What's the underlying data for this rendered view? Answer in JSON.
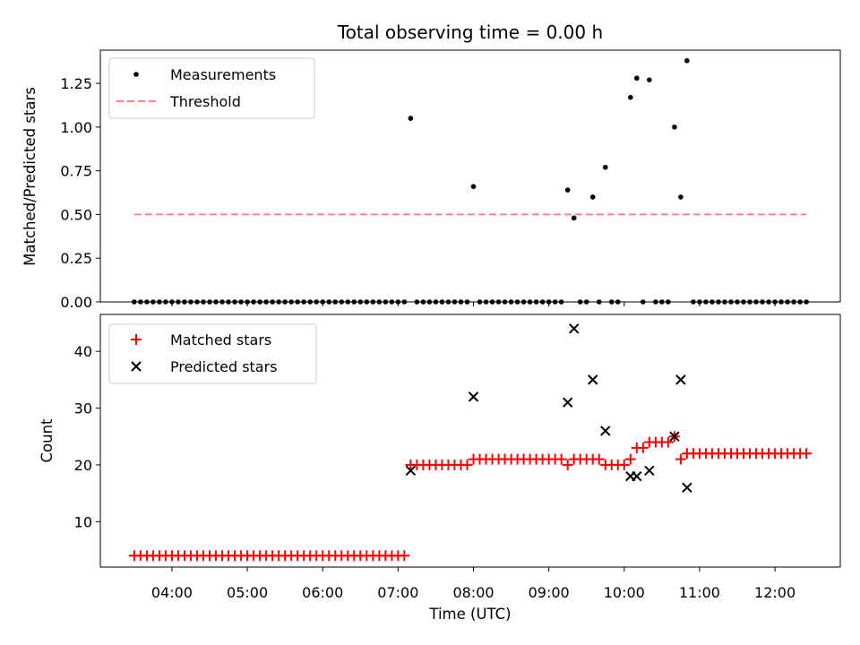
{
  "chart_data": {
    "title": "Total observing time = 0.00 h",
    "xlabel": "Time (UTC)",
    "x_ticks": [
      "04:00",
      "05:00",
      "06:00",
      "07:00",
      "08:00",
      "09:00",
      "10:00",
      "11:00",
      "12:00"
    ],
    "panels": [
      {
        "type": "scatter",
        "ylabel": "Matched/Predicted stars",
        "ylim": [
          0,
          1.44
        ],
        "y_ticks": [
          "0.00",
          "0.25",
          "0.50",
          "0.75",
          "1.00",
          "1.25"
        ],
        "legend": {
          "position": "upper-left"
        },
        "series": [
          {
            "name": "Measurements",
            "marker": "dot",
            "color": "#000000",
            "points": [
              [
                "03:30",
                0
              ],
              [
                "03:35",
                0
              ],
              [
                "03:40",
                0
              ],
              [
                "03:45",
                0
              ],
              [
                "03:50",
                0
              ],
              [
                "03:55",
                0
              ],
              [
                "04:00",
                0
              ],
              [
                "04:05",
                0
              ],
              [
                "04:10",
                0
              ],
              [
                "04:15",
                0
              ],
              [
                "04:20",
                0
              ],
              [
                "04:25",
                0
              ],
              [
                "04:30",
                0
              ],
              [
                "04:35",
                0
              ],
              [
                "04:40",
                0
              ],
              [
                "04:45",
                0
              ],
              [
                "04:50",
                0
              ],
              [
                "04:55",
                0
              ],
              [
                "05:00",
                0
              ],
              [
                "05:05",
                0
              ],
              [
                "05:10",
                0
              ],
              [
                "05:15",
                0
              ],
              [
                "05:20",
                0
              ],
              [
                "05:25",
                0
              ],
              [
                "05:30",
                0
              ],
              [
                "05:35",
                0
              ],
              [
                "05:40",
                0
              ],
              [
                "05:45",
                0
              ],
              [
                "05:50",
                0
              ],
              [
                "05:55",
                0
              ],
              [
                "06:00",
                0
              ],
              [
                "06:05",
                0
              ],
              [
                "06:10",
                0
              ],
              [
                "06:15",
                0
              ],
              [
                "06:20",
                0
              ],
              [
                "06:25",
                0
              ],
              [
                "06:30",
                0
              ],
              [
                "06:35",
                0
              ],
              [
                "06:40",
                0
              ],
              [
                "06:45",
                0
              ],
              [
                "06:50",
                0
              ],
              [
                "06:55",
                0
              ],
              [
                "07:00",
                0
              ],
              [
                "07:05",
                0
              ],
              [
                "07:10",
                1.05
              ],
              [
                "07:15",
                0
              ],
              [
                "07:20",
                0
              ],
              [
                "07:25",
                0
              ],
              [
                "07:30",
                0
              ],
              [
                "07:35",
                0
              ],
              [
                "07:40",
                0
              ],
              [
                "07:45",
                0
              ],
              [
                "07:50",
                0
              ],
              [
                "07:55",
                0
              ],
              [
                "08:00",
                0.66
              ],
              [
                "08:05",
                0
              ],
              [
                "08:10",
                0
              ],
              [
                "08:15",
                0
              ],
              [
                "08:20",
                0
              ],
              [
                "08:25",
                0
              ],
              [
                "08:30",
                0
              ],
              [
                "08:35",
                0
              ],
              [
                "08:40",
                0
              ],
              [
                "08:45",
                0
              ],
              [
                "08:50",
                0
              ],
              [
                "08:55",
                0
              ],
              [
                "09:00",
                0
              ],
              [
                "09:05",
                0
              ],
              [
                "09:10",
                0
              ],
              [
                "09:15",
                0.64
              ],
              [
                "09:20",
                0.48
              ],
              [
                "09:25",
                0
              ],
              [
                "09:30",
                0
              ],
              [
                "09:35",
                0.6
              ],
              [
                "09:40",
                0
              ],
              [
                "09:45",
                0.77
              ],
              [
                "09:50",
                0
              ],
              [
                "09:55",
                0
              ],
              [
                "10:05",
                1.17
              ],
              [
                "10:10",
                1.28
              ],
              [
                "10:15",
                0
              ],
              [
                "10:20",
                1.27
              ],
              [
                "10:25",
                0
              ],
              [
                "10:30",
                0
              ],
              [
                "10:35",
                0
              ],
              [
                "10:40",
                1.0
              ],
              [
                "10:45",
                0.6
              ],
              [
                "10:50",
                1.38
              ],
              [
                "10:55",
                0
              ],
              [
                "11:00",
                0
              ],
              [
                "11:05",
                0
              ],
              [
                "11:10",
                0
              ],
              [
                "11:15",
                0
              ],
              [
                "11:20",
                0
              ],
              [
                "11:25",
                0
              ],
              [
                "11:30",
                0
              ],
              [
                "11:35",
                0
              ],
              [
                "11:40",
                0
              ],
              [
                "11:45",
                0
              ],
              [
                "11:50",
                0
              ],
              [
                "11:55",
                0
              ],
              [
                "12:00",
                0
              ],
              [
                "12:05",
                0
              ],
              [
                "12:10",
                0
              ],
              [
                "12:15",
                0
              ],
              [
                "12:20",
                0
              ],
              [
                "12:25",
                0
              ]
            ]
          },
          {
            "name": "Threshold",
            "type": "line",
            "style": "dashed",
            "color": "#ff8080",
            "points": [
              [
                "03:30",
                0.5
              ],
              [
                "12:25",
                0.5
              ]
            ]
          }
        ]
      },
      {
        "type": "scatter",
        "ylabel": "Count",
        "ylim": [
          2,
          46.5
        ],
        "y_ticks": [
          "10",
          "20",
          "30",
          "40"
        ],
        "legend": {
          "position": "upper-left"
        },
        "series": [
          {
            "name": "Matched stars",
            "marker": "plus",
            "color": "#ff0000",
            "points": [
              [
                "03:30",
                4
              ],
              [
                "03:35",
                4
              ],
              [
                "03:40",
                4
              ],
              [
                "03:45",
                4
              ],
              [
                "03:50",
                4
              ],
              [
                "03:55",
                4
              ],
              [
                "04:00",
                4
              ],
              [
                "04:05",
                4
              ],
              [
                "04:10",
                4
              ],
              [
                "04:15",
                4
              ],
              [
                "04:20",
                4
              ],
              [
                "04:25",
                4
              ],
              [
                "04:30",
                4
              ],
              [
                "04:35",
                4
              ],
              [
                "04:40",
                4
              ],
              [
                "04:45",
                4
              ],
              [
                "04:50",
                4
              ],
              [
                "04:55",
                4
              ],
              [
                "05:00",
                4
              ],
              [
                "05:05",
                4
              ],
              [
                "05:10",
                4
              ],
              [
                "05:15",
                4
              ],
              [
                "05:20",
                4
              ],
              [
                "05:25",
                4
              ],
              [
                "05:30",
                4
              ],
              [
                "05:35",
                4
              ],
              [
                "05:40",
                4
              ],
              [
                "05:45",
                4
              ],
              [
                "05:50",
                4
              ],
              [
                "05:55",
                4
              ],
              [
                "06:00",
                4
              ],
              [
                "06:05",
                4
              ],
              [
                "06:10",
                4
              ],
              [
                "06:15",
                4
              ],
              [
                "06:20",
                4
              ],
              [
                "06:25",
                4
              ],
              [
                "06:30",
                4
              ],
              [
                "06:35",
                4
              ],
              [
                "06:40",
                4
              ],
              [
                "06:45",
                4
              ],
              [
                "06:50",
                4
              ],
              [
                "06:55",
                4
              ],
              [
                "07:00",
                4
              ],
              [
                "07:05",
                4
              ],
              [
                "07:10",
                20
              ],
              [
                "07:15",
                20
              ],
              [
                "07:20",
                20
              ],
              [
                "07:25",
                20
              ],
              [
                "07:30",
                20
              ],
              [
                "07:35",
                20
              ],
              [
                "07:40",
                20
              ],
              [
                "07:45",
                20
              ],
              [
                "07:50",
                20
              ],
              [
                "07:55",
                20
              ],
              [
                "08:00",
                21
              ],
              [
                "08:05",
                21
              ],
              [
                "08:10",
                21
              ],
              [
                "08:15",
                21
              ],
              [
                "08:20",
                21
              ],
              [
                "08:25",
                21
              ],
              [
                "08:30",
                21
              ],
              [
                "08:35",
                21
              ],
              [
                "08:40",
                21
              ],
              [
                "08:45",
                21
              ],
              [
                "08:50",
                21
              ],
              [
                "08:55",
                21
              ],
              [
                "09:00",
                21
              ],
              [
                "09:05",
                21
              ],
              [
                "09:10",
                21
              ],
              [
                "09:15",
                20
              ],
              [
                "09:20",
                21
              ],
              [
                "09:25",
                21
              ],
              [
                "09:30",
                21
              ],
              [
                "09:35",
                21
              ],
              [
                "09:40",
                21
              ],
              [
                "09:45",
                20
              ],
              [
                "09:50",
                20
              ],
              [
                "09:55",
                20
              ],
              [
                "10:00",
                20
              ],
              [
                "10:05",
                21
              ],
              [
                "10:10",
                23
              ],
              [
                "10:15",
                23
              ],
              [
                "10:20",
                24
              ],
              [
                "10:25",
                24
              ],
              [
                "10:30",
                24
              ],
              [
                "10:35",
                24
              ],
              [
                "10:40",
                25
              ],
              [
                "10:45",
                21
              ],
              [
                "10:50",
                22
              ],
              [
                "10:55",
                22
              ],
              [
                "11:00",
                22
              ],
              [
                "11:05",
                22
              ],
              [
                "11:10",
                22
              ],
              [
                "11:15",
                22
              ],
              [
                "11:20",
                22
              ],
              [
                "11:25",
                22
              ],
              [
                "11:30",
                22
              ],
              [
                "11:35",
                22
              ],
              [
                "11:40",
                22
              ],
              [
                "11:45",
                22
              ],
              [
                "11:50",
                22
              ],
              [
                "11:55",
                22
              ],
              [
                "12:00",
                22
              ],
              [
                "12:05",
                22
              ],
              [
                "12:10",
                22
              ],
              [
                "12:15",
                22
              ],
              [
                "12:20",
                22
              ],
              [
                "12:25",
                22
              ]
            ]
          },
          {
            "name": "Predicted stars",
            "marker": "x",
            "color": "#000000",
            "points": [
              [
                "07:10",
                19
              ],
              [
                "08:00",
                32
              ],
              [
                "09:15",
                31
              ],
              [
                "09:20",
                44
              ],
              [
                "09:35",
                35
              ],
              [
                "09:45",
                26
              ],
              [
                "10:05",
                18
              ],
              [
                "10:10",
                18
              ],
              [
                "10:20",
                19
              ],
              [
                "10:40",
                25
              ],
              [
                "10:45",
                35
              ],
              [
                "10:50",
                16
              ]
            ]
          }
        ]
      }
    ]
  }
}
